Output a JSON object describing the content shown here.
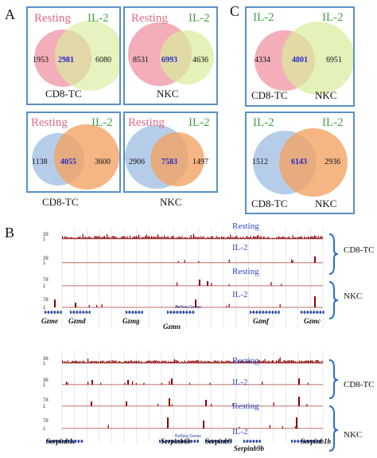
{
  "panels": {
    "A": "A",
    "B": "B",
    "C": "C"
  },
  "venns": [
    {
      "left_label": "Resting",
      "right_label": "IL-2",
      "left_only": "1953",
      "overlap": "2981",
      "right_only": "6080",
      "caption": "CD8-TC",
      "left_color": "#f19aa8",
      "right_color": "#d9ec9c",
      "cap_inside": true
    },
    {
      "left_label": "Resting",
      "right_label": "IL-2",
      "left_only": "8531",
      "overlap": "6993",
      "right_only": "4636",
      "caption": "NKC",
      "left_color": "#f19aa8",
      "right_color": "#d9ec9c",
      "cap_inside": true
    },
    {
      "left_label": "Resting",
      "right_label": "IL-2",
      "left_only": "1138",
      "overlap": "4055",
      "right_only": "3600",
      "caption": "CD8-TC",
      "left_color": "#a9c4e6",
      "right_color": "#f2a464",
      "cap_inside": false
    },
    {
      "left_label": "Resting",
      "right_label": "IL-2",
      "left_only": "2906",
      "overlap": "7583",
      "right_only": "1497",
      "caption": "NKC",
      "left_color": "#a9c4e6",
      "right_color": "#f2a464",
      "cap_inside": false
    },
    {
      "left_label": "IL-2",
      "right_label": "IL-2",
      "left_only": "4334",
      "overlap": "4801",
      "right_only": "6951",
      "caption_left": "CD8-TC",
      "caption_right": "NKC",
      "left_color": "#f19aa8",
      "right_color": "#d9ec9c"
    },
    {
      "left_label": "IL-2",
      "right_label": "IL-2",
      "left_only": "1512",
      "overlap": "6143",
      "right_only": "2936",
      "caption_left": "CD8-TC",
      "caption_right": "NKC",
      "left_color": "#a9c4e6",
      "right_color": "#f2a464"
    }
  ],
  "browser_top": {
    "scale_labels": [
      "39",
      "1",
      "39",
      "1",
      "78",
      "1",
      "78",
      "1"
    ],
    "track_labels": [
      "Resting",
      "IL-2",
      "Resting",
      "IL-2"
    ],
    "group_labels": [
      "CD8-TC",
      "NKC"
    ],
    "genes": [
      "Gzme",
      "Gzmd",
      "Gzmg",
      "Gzmn",
      "Gzmf",
      "Gzmc"
    ],
    "refseq": "RefSeq Genes"
  },
  "browser_bottom": {
    "scale_labels": [
      "36",
      "1",
      "36",
      "1",
      "78",
      "1",
      "78",
      "1"
    ],
    "track_labels": [
      "Resting",
      "IL-2",
      "Resting",
      "IL-2"
    ],
    "group_labels": [
      "CD8-TC",
      "NKC"
    ],
    "genes": [
      "Serpinb1c",
      "Serpinb6b",
      "Serpinb9",
      "Serpinb9b",
      "Serpinb1b"
    ],
    "refseq": "RefSeq Genes"
  },
  "colors": {
    "track": "#8b0000",
    "gene": "#1f3fa0",
    "bracket": "#2a6fc8",
    "box_border": "#5a90c8"
  }
}
